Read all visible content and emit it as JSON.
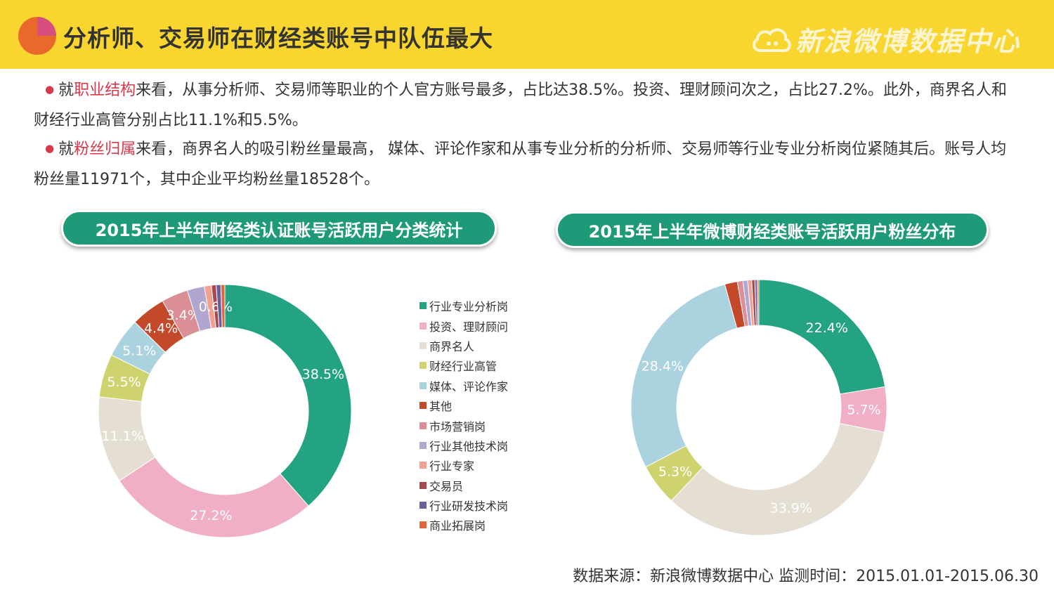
{
  "header": {
    "title": "分析师、交易师在财经类账号中队伍最大",
    "brand": "新浪微博数据中心"
  },
  "paragraph1": {
    "prefix": "就",
    "highlight": "职业结构",
    "text": "来看，从事分析师、交易师等职业的个人官方账号最多，占比达38.5%。投资、理财顾问次之，占比27.2%。此外，商界名人和财经行业高管分别占比11.1%和5.5%。"
  },
  "paragraph2": {
    "prefix": "就",
    "highlight": "粉丝归属",
    "text": "来看，商界名人的吸引粉丝量最高， 媒体、评论作家和从事专业分析的分析师、交易师等行业专业分析岗位紧随其后。账号人均粉丝量11971个，其中企业平均粉丝量18528个。"
  },
  "chart_titles": {
    "left": "2015年上半年财经类认证账号活跃用户分类统计",
    "right": "2015年上半年微博财经类账号活跃用户粉丝分布"
  },
  "source": "数据来源：新浪微博数据中心    监测时间：2015.01.01-2015.06.30",
  "colors": {
    "header_bg": "#f9d52f",
    "pill_bg": "#1f9a78",
    "highlight": "#d8394b"
  },
  "chart_data": [
    {
      "type": "donut",
      "categories": [
        "行业专业分析岗",
        "投资、理财顾问",
        "商界名人",
        "财经行业高管",
        "媒体、评论作家",
        "其他",
        "市场营销岗",
        "行业其他技术岗",
        "行业专家",
        "交易员",
        "行业研发技术岗",
        "商业拓展岗"
      ],
      "values": [
        38.5,
        27.2,
        11.1,
        5.5,
        5.1,
        4.4,
        3.4,
        2.2,
        0.9,
        0.6,
        0.6,
        0.5
      ],
      "labels": [
        "38.5%",
        "27.2%",
        "11.1%",
        "5.5%",
        "5.1%",
        "4.4%",
        "3.4%",
        "",
        "",
        "0.6%",
        "",
        ""
      ],
      "colors": [
        "#23a382",
        "#f0afc4",
        "#e5ded2",
        "#cfd36f",
        "#abd2df",
        "#c4492a",
        "#db8e95",
        "#b1a6cf",
        "#f2a191",
        "#a5484f",
        "#6a5f9b",
        "#e0663b"
      ],
      "legend_position": "right"
    },
    {
      "type": "donut",
      "categories": [
        "行业专业分析岗",
        "投资、理财顾问",
        "商界名人",
        "财经行业高管",
        "媒体、评论作家",
        "其他",
        "市场营销岗",
        "行业其他技术岗",
        "行业专家",
        "交易员",
        "行业研发技术岗",
        "商业拓展岗"
      ],
      "values": [
        22.4,
        5.7,
        33.9,
        5.3,
        28.4,
        1.6,
        0.7,
        0.6,
        0.5,
        0.4,
        0.3,
        0.2
      ],
      "labels": [
        "22.4%",
        "5.7%",
        "33.9%",
        "5.3%",
        "28.4%",
        "",
        "",
        "",
        "",
        "",
        "",
        ""
      ],
      "colors": [
        "#23a382",
        "#f0afc4",
        "#e5ded2",
        "#cfd36f",
        "#abd2df",
        "#c4492a",
        "#db8e95",
        "#b1a6cf",
        "#f2a191",
        "#a5484f",
        "#6a5f9b",
        "#e0663b"
      ]
    }
  ]
}
